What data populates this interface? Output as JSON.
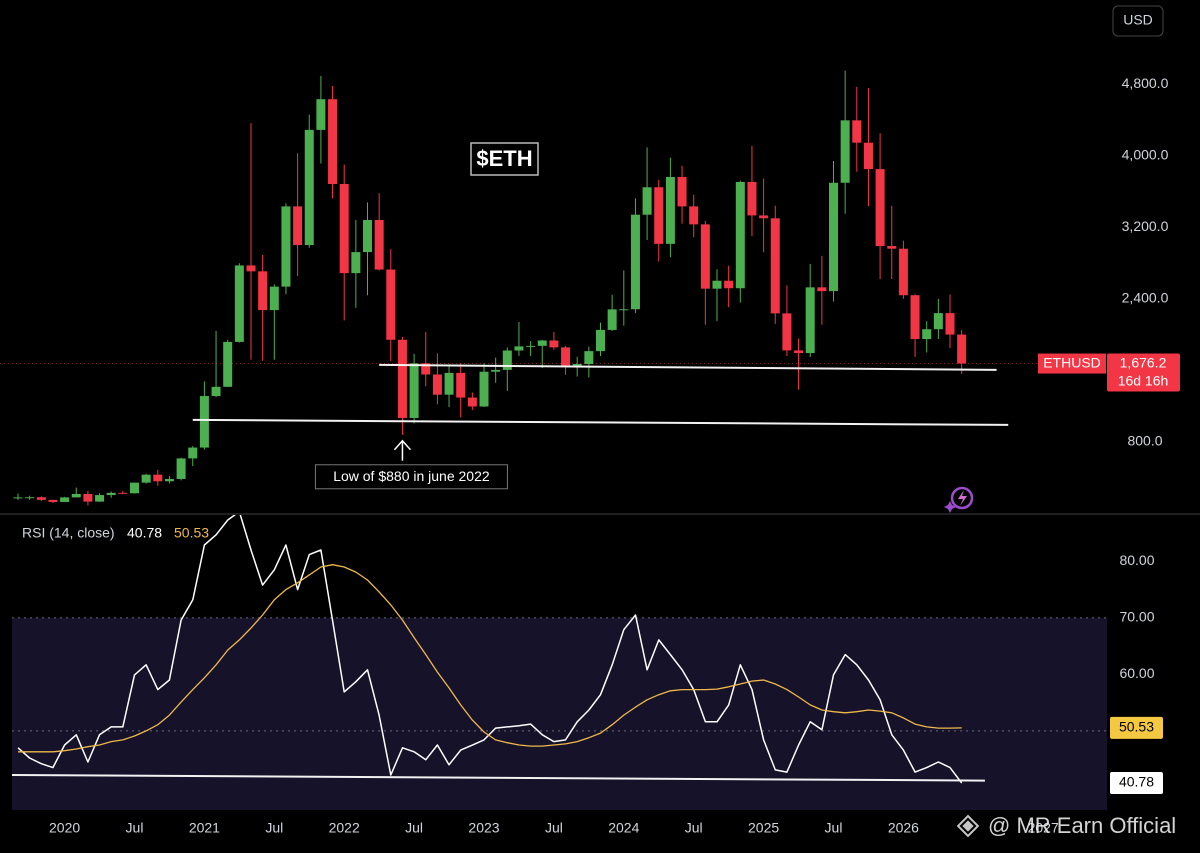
{
  "chart_data": [
    {
      "type": "candlestick",
      "title": "$ETH",
      "currency": "USD",
      "x": [
        "2019-09",
        "2019-10",
        "2019-11",
        "2019-12",
        "2020-01",
        "2020-02",
        "2020-03",
        "2020-04",
        "2020-05",
        "2020-06",
        "2020-07",
        "2020-08",
        "2020-09",
        "2020-10",
        "2020-11",
        "2020-12",
        "2021-01",
        "2021-02",
        "2021-03",
        "2021-04",
        "2021-05",
        "2021-06",
        "2021-07",
        "2021-08",
        "2021-09",
        "2021-10",
        "2021-11",
        "2021-12",
        "2022-01",
        "2022-02",
        "2022-03",
        "2022-04",
        "2022-05",
        "2022-06",
        "2022-07",
        "2022-08",
        "2022-09",
        "2022-10",
        "2022-11",
        "2022-12",
        "2023-01",
        "2023-02",
        "2023-03",
        "2023-04",
        "2023-05",
        "2023-06",
        "2023-07",
        "2023-08",
        "2023-09",
        "2023-10",
        "2023-11",
        "2023-12",
        "2024-01",
        "2024-02",
        "2024-03",
        "2024-04",
        "2024-05",
        "2024-06",
        "2024-07",
        "2024-08",
        "2024-09",
        "2024-10",
        "2024-11",
        "2024-12",
        "2025-01",
        "2025-02",
        "2025-03",
        "2025-04",
        "2025-05",
        "2025-06",
        "2025-07",
        "2025-08",
        "2025-09",
        "2025-10",
        "2025-11",
        "2025-12",
        "2026-01",
        "2026-02",
        "2026-03",
        "2026-04",
        "2026-05",
        "2026-06"
      ],
      "open": [
        172,
        180,
        182,
        152,
        129,
        180,
        218,
        133,
        206,
        231,
        226,
        345,
        434,
        360,
        386,
        616,
        737,
        1313,
        1416,
        1918,
        2773,
        2707,
        2274,
        2536,
        3433,
        3001,
        4288,
        4631,
        3683,
        2687,
        2922,
        3281,
        2727,
        1942,
        1068,
        1679,
        1554,
        1328,
        1572,
        1296,
        1196,
        1585,
        1605,
        1822,
        1868,
        1874,
        1934,
        1857,
        1646,
        1671,
        1815,
        2052,
        2282,
        2283,
        3340,
        3647,
        3014,
        3762,
        3433,
        3232,
        2513,
        2602,
        2518,
        3706,
        3332,
        3300,
        2237,
        1823,
        1793,
        2528,
        2486,
        3697,
        4395,
        4145,
        3850,
        2990,
        2960,
        2440,
        1950,
        2060,
        2240,
        2000
      ],
      "high": [
        224,
        199,
        193,
        155,
        186,
        290,
        253,
        227,
        247,
        254,
        346,
        445,
        489,
        419,
        623,
        755,
        1476,
        2041,
        1943,
        2797,
        4362,
        2891,
        2561,
        3467,
        4027,
        4460,
        4891,
        4779,
        3900,
        3282,
        3478,
        3580,
        2954,
        1975,
        1785,
        2030,
        1790,
        1663,
        1679,
        1353,
        1679,
        1743,
        1857,
        2142,
        1928,
        1940,
        2029,
        1874,
        1752,
        1865,
        2133,
        2445,
        2717,
        3523,
        4093,
        3730,
        3977,
        3887,
        3563,
        3270,
        2729,
        2769,
        3720,
        4109,
        3745,
        3440,
        2550,
        1955,
        2790,
        2880,
        3940,
        4950,
        4770,
        4755,
        4250,
        3440,
        3050,
        2450,
        2150,
        2400,
        2450,
        2050
      ],
      "low": [
        153,
        152,
        137,
        117,
        127,
        180,
        90,
        130,
        176,
        216,
        222,
        335,
        309,
        335,
        370,
        530,
        714,
        1300,
        1416,
        1911,
        1719,
        1707,
        1718,
        2451,
        2652,
        2970,
        3912,
        3524,
        2159,
        2300,
        2440,
        2716,
        1703,
        880,
        1006,
        1422,
        1220,
        1190,
        1073,
        1157,
        1190,
        1461,
        1370,
        1762,
        1760,
        1626,
        1830,
        1550,
        1531,
        1521,
        1761,
        2040,
        2100,
        2240,
        3056,
        2817,
        2865,
        3240,
        3087,
        2111,
        2150,
        2307,
        2357,
        3100,
        2920,
        2120,
        1760,
        1385,
        1750,
        2110,
        2370,
        3350,
        3820,
        3435,
        2620,
        2620,
        2400,
        1750,
        1800,
        1950,
        1850,
        1560
      ],
      "close": [
        180,
        182,
        152,
        129,
        180,
        218,
        133,
        206,
        231,
        226,
        345,
        434,
        360,
        386,
        616,
        737,
        1313,
        1416,
        1918,
        2773,
        2707,
        2274,
        2536,
        3433,
        3001,
        4288,
        4631,
        3683,
        2687,
        2922,
        3281,
        2727,
        1942,
        1068,
        1679,
        1554,
        1328,
        1572,
        1296,
        1196,
        1585,
        1605,
        1822,
        1868,
        1874,
        1934,
        1857,
        1646,
        1671,
        1815,
        2052,
        2282,
        2283,
        3340,
        3647,
        3014,
        3762,
        3433,
        3232,
        2513,
        2602,
        2518,
        3706,
        3332,
        3300,
        2237,
        1823,
        1793,
        2528,
        2486,
        3697,
        4395,
        4145,
        3850,
        2990,
        2960,
        2440,
        1950,
        2060,
        2240,
        2000,
        1676.2
      ],
      "up_color": "#4caf50",
      "down_color": "#f23645",
      "ylim": [
        0,
        5740
      ],
      "yticks": [
        {
          "value": 800,
          "label": "800.0"
        },
        {
          "value": 2400,
          "label": "2,400.0"
        },
        {
          "value": 3200,
          "label": "3,200.0"
        },
        {
          "value": 4000,
          "label": "4,000.0"
        },
        {
          "value": 4800,
          "label": "4,800.0"
        }
      ],
      "last_price": {
        "symbol": "ETHUSD",
        "value": 1676.2,
        "label": "1,676.2",
        "countdown": "16d 16h"
      },
      "trendlines": [
        {
          "x": [
            "2020-12",
            "2026-10"
          ],
          "y": [
            1046,
            990
          ]
        },
        {
          "x": [
            "2022-04",
            "2026-09"
          ],
          "y": [
            1661,
            1605
          ]
        }
      ],
      "annotation": {
        "text": "Low of $880 in june 2022",
        "x": "2022-06"
      }
    },
    {
      "type": "line",
      "title": "RSI (14, close)",
      "x": [
        "2019-09",
        "2019-10",
        "2019-11",
        "2019-12",
        "2020-01",
        "2020-02",
        "2020-03",
        "2020-04",
        "2020-05",
        "2020-06",
        "2020-07",
        "2020-08",
        "2020-09",
        "2020-10",
        "2020-11",
        "2020-12",
        "2021-01",
        "2021-02",
        "2021-03",
        "2021-04",
        "2021-05",
        "2021-06",
        "2021-07",
        "2021-08",
        "2021-09",
        "2021-10",
        "2021-11",
        "2021-12",
        "2022-01",
        "2022-02",
        "2022-03",
        "2022-04",
        "2022-05",
        "2022-06",
        "2022-07",
        "2022-08",
        "2022-09",
        "2022-10",
        "2022-11",
        "2022-12",
        "2023-01",
        "2023-02",
        "2023-03",
        "2023-04",
        "2023-05",
        "2023-06",
        "2023-07",
        "2023-08",
        "2023-09",
        "2023-10",
        "2023-11",
        "2023-12",
        "2024-01",
        "2024-02",
        "2024-03",
        "2024-04",
        "2024-05",
        "2024-06",
        "2024-07",
        "2024-08",
        "2024-09",
        "2024-10",
        "2024-11",
        "2024-12",
        "2025-01",
        "2025-02",
        "2025-03",
        "2025-04",
        "2025-05",
        "2025-06",
        "2025-07",
        "2025-08",
        "2025-09",
        "2025-10",
        "2025-11",
        "2025-12",
        "2026-01",
        "2026-02",
        "2026-03",
        "2026-04",
        "2026-05",
        "2026-06"
      ],
      "series": [
        {
          "color": "#ffffff",
          "label_bg": "#ffffff",
          "values": [
            47.0,
            45.2,
            44.2,
            43.5,
            47.5,
            49.3,
            44.5,
            49.3,
            50.7,
            50.7,
            59.9,
            61.7,
            57.3,
            59.0,
            69.6,
            73.2,
            82.9,
            84.7,
            87.3,
            88.8,
            82.0,
            75.8,
            78.5,
            82.9,
            75.0,
            81.2,
            82.0,
            69.6,
            56.9,
            58.7,
            60.8,
            52.8,
            42.2,
            47.0,
            46.3,
            44.9,
            47.5,
            44.0,
            46.6,
            47.5,
            48.4,
            50.5,
            50.7,
            50.9,
            51.2,
            49.3,
            48.1,
            48.4,
            51.6,
            53.7,
            56.4,
            61.7,
            67.9,
            70.5,
            60.8,
            66.1,
            63.5,
            60.8,
            57.3,
            51.6,
            51.6,
            54.6,
            61.7,
            57.3,
            48.4,
            43.1,
            42.7,
            47.5,
            51.6,
            50.2,
            59.9,
            63.5,
            61.7,
            59.0,
            55.5,
            49.3,
            46.6,
            42.7,
            43.5,
            44.5,
            43.5,
            40.78
          ]
        },
        {
          "color": "#f0b84a",
          "label_bg": "#f5c842",
          "values": [
            46.3,
            46.3,
            46.3,
            46.3,
            46.5,
            46.8,
            47.2,
            47.5,
            48.1,
            48.4,
            49.1,
            50.0,
            51.1,
            52.8,
            55.1,
            57.3,
            59.4,
            61.7,
            64.3,
            66.1,
            68.2,
            70.5,
            73.2,
            75.0,
            76.2,
            77.6,
            79.0,
            79.4,
            79.0,
            78.1,
            76.7,
            74.6,
            72.3,
            69.6,
            66.5,
            63.5,
            60.4,
            57.6,
            54.6,
            51.9,
            49.8,
            48.4,
            47.9,
            47.5,
            47.3,
            47.3,
            47.5,
            47.7,
            48.1,
            48.8,
            49.6,
            51.1,
            52.8,
            54.2,
            55.5,
            56.4,
            57.1,
            57.3,
            57.3,
            57.3,
            57.4,
            57.8,
            58.3,
            58.8,
            59.0,
            58.3,
            57.3,
            56.0,
            54.6,
            53.7,
            53.4,
            53.2,
            53.4,
            53.7,
            53.5,
            53.2,
            52.3,
            51.2,
            50.7,
            50.5,
            50.5,
            50.53
          ]
        }
      ],
      "ylim": [
        36,
        88.2
      ],
      "yticks": [
        {
          "value": 60,
          "label": "60.00"
        },
        {
          "value": 70,
          "label": "70.00"
        },
        {
          "value": 80,
          "label": "80.00"
        }
      ],
      "bands": {
        "upper": 70,
        "middle": 50
      },
      "trendlines": [
        {
          "x": [
            "2019-08",
            "2026-08"
          ],
          "y": [
            42.2,
            41.2
          ]
        }
      ],
      "xticks": [
        {
          "value": "2020-01",
          "label": "2020"
        },
        {
          "value": "2020-07",
          "label": "Jul"
        },
        {
          "value": "2021-01",
          "label": "2021"
        },
        {
          "value": "2021-07",
          "label": "Jul"
        },
        {
          "value": "2022-01",
          "label": "2022"
        },
        {
          "value": "2022-07",
          "label": "Jul"
        },
        {
          "value": "2023-01",
          "label": "2023"
        },
        {
          "value": "2023-07",
          "label": "Jul"
        },
        {
          "value": "2024-01",
          "label": "2024"
        },
        {
          "value": "2024-07",
          "label": "Jul"
        },
        {
          "value": "2025-01",
          "label": "2025"
        },
        {
          "value": "2025-07",
          "label": "Jul"
        },
        {
          "value": "2026-01",
          "label": "2026"
        },
        {
          "value": "2027-01",
          "label": "2027"
        }
      ]
    }
  ],
  "watermark": "@ MR Earn Official"
}
